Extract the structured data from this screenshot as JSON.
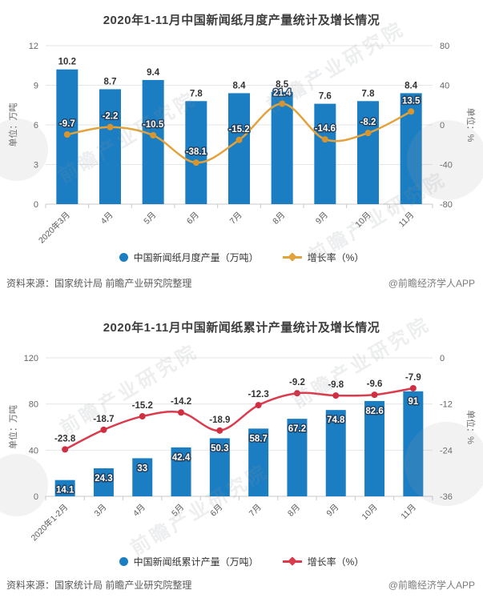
{
  "page": {
    "source_note": "资料来源：国家统计局 前瞻产业研究院整理",
    "app_credit": "@前瞻经济学人APP",
    "watermark_text": "前瞻产业研究院",
    "background_color": "#ffffff"
  },
  "colors": {
    "bar_blue": "#1B7EC2",
    "line_orange": "#E2A33C",
    "line_red": "#DB3B4C",
    "title_text": "#3d3d3d",
    "axis_text": "#666666",
    "grid_line": "#e6e6e6",
    "label_outline_navy": "#23405e"
  },
  "chart_data": [
    {
      "type": "bar",
      "subtype": "combo-bar-line-dual-axis",
      "title": "2020年1-11月中国新闻纸月度产量统计及增长情况",
      "categories": [
        "2020年3月",
        "4月",
        "5月",
        "6月",
        "7月",
        "8月",
        "9月",
        "10月",
        "11月"
      ],
      "series": [
        {
          "name": "中国新闻纸月度产量（万吨）",
          "type": "bar",
          "axis": "left",
          "color": "#1B7EC2",
          "label_position": "above",
          "values": [
            10.2,
            8.7,
            9.4,
            7.8,
            8.4,
            8.5,
            7.6,
            7.8,
            8.4
          ]
        },
        {
          "name": "增长率（%）",
          "type": "line",
          "axis": "right",
          "color": "#E2A33C",
          "marker_color": "#D8952F",
          "label_style": "outlined-white",
          "values": [
            -9.7,
            -2.2,
            -10.5,
            -38.1,
            -15.2,
            21.4,
            -14.6,
            -8.2,
            13.5
          ]
        }
      ],
      "left_axis": {
        "label": "单位：万吨",
        "min": 0,
        "max": 12,
        "ticks": [
          0,
          3,
          6,
          9,
          12
        ]
      },
      "right_axis": {
        "label": "单位：%",
        "min": -80,
        "max": 80,
        "ticks": [
          -80,
          -40,
          0,
          40,
          80
        ]
      },
      "grid": true,
      "legend_position": "bottom"
    },
    {
      "type": "bar",
      "subtype": "combo-bar-line-dual-axis",
      "title": "2020年1-11月中国新闻纸累计产量统计及增长情况",
      "categories": [
        "2020年1-2月",
        "3月",
        "4月",
        "5月",
        "6月",
        "7月",
        "8月",
        "9月",
        "10月",
        "11月"
      ],
      "series": [
        {
          "name": "中国新闻纸累计产量（万吨）",
          "type": "bar",
          "axis": "left",
          "color": "#1B7EC2",
          "label_position": "inside-top",
          "values": [
            14.1,
            24.3,
            33,
            42.4,
            50.3,
            58.7,
            67.2,
            74.8,
            82.6,
            91
          ]
        },
        {
          "name": "增长率（%）",
          "type": "line",
          "axis": "right",
          "color": "#DB3B4C",
          "marker_color": "#D02F42",
          "label_style": "dark",
          "values": [
            -23.8,
            -18.7,
            -15.2,
            -14.2,
            -18.9,
            -12.3,
            -9.2,
            -9.8,
            -9.6,
            -7.9
          ]
        }
      ],
      "left_axis": {
        "label": "单位：万吨",
        "min": 0,
        "max": 120,
        "ticks": [
          0,
          40,
          80,
          120
        ]
      },
      "right_axis": {
        "label": "单位：%",
        "min": -36,
        "max": 0,
        "ticks": [
          -36,
          -24,
          -12,
          0
        ]
      },
      "grid": true,
      "legend_position": "bottom"
    }
  ]
}
